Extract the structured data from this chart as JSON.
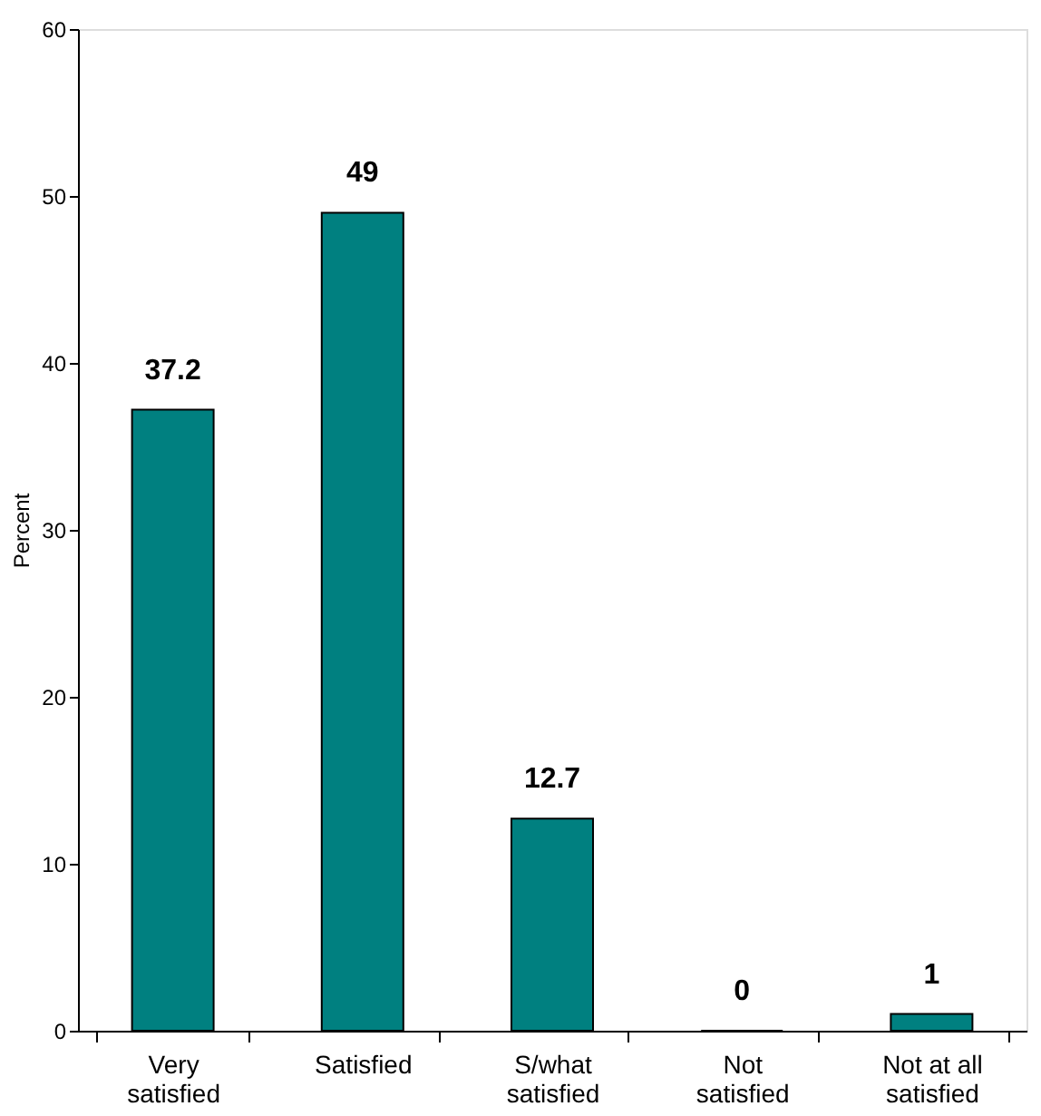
{
  "chart_data": {
    "type": "bar",
    "ylabel": "Percent",
    "categories": [
      "Very satisfied",
      "Satisfied",
      "S/what satisfied",
      "Not satisfied",
      "Not at all satisfied"
    ],
    "values": [
      37.2,
      49,
      12.7,
      0,
      1
    ],
    "color": "#008080",
    "ylim": [
      0,
      60
    ],
    "yticks": [
      0,
      10,
      20,
      30,
      40,
      50,
      60
    ],
    "grid": false,
    "data_labels": true
  }
}
